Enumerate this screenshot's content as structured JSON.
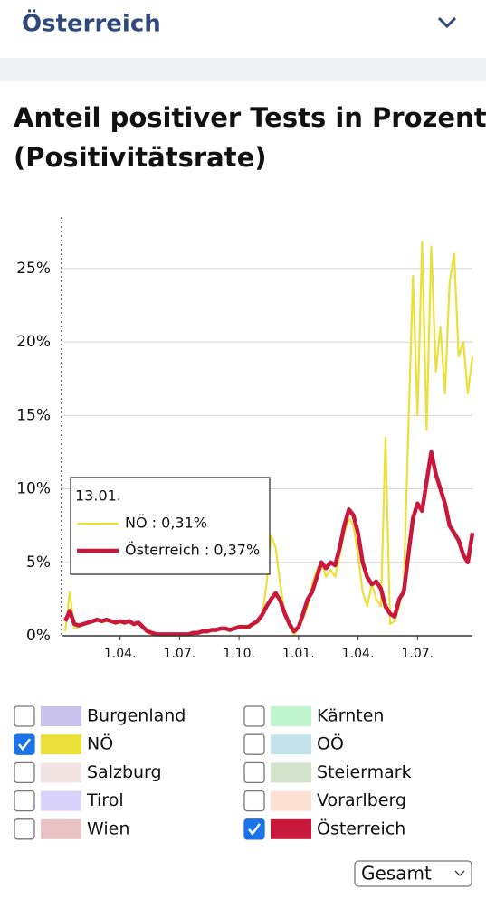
{
  "header": {
    "title": "Österreich"
  },
  "chart_data": {
    "type": "line",
    "title": "Anteil positiver Tests in Prozent (Positivitätsrate)",
    "categories": [
      null,
      null,
      null,
      null,
      null,
      null,
      null,
      null,
      null,
      null,
      null,
      null,
      "1.04.",
      null,
      null,
      null,
      null,
      null,
      null,
      null,
      null,
      null,
      null,
      null,
      null,
      "1.07.",
      null,
      null,
      null,
      null,
      null,
      null,
      null,
      null,
      null,
      null,
      null,
      null,
      "1.10.",
      null,
      null,
      null,
      null,
      null,
      null,
      null,
      null,
      null,
      null,
      null,
      null,
      "1.01.",
      null,
      null,
      null,
      null,
      null,
      null,
      null,
      null,
      null,
      null,
      null,
      null,
      "1.04.",
      null,
      null,
      null,
      null,
      null,
      null,
      null,
      null,
      null,
      null,
      null,
      null,
      "1.07.",
      null,
      null,
      null,
      null,
      null,
      null,
      null,
      null,
      null,
      null,
      null,
      null
    ],
    "series": [
      {
        "name": "NÖ",
        "color": "#ebe03a",
        "values": [
          0.3,
          3.0,
          0.5,
          0.6,
          0.8,
          0.9,
          1.0,
          1.2,
          0.9,
          1.0,
          1.1,
          0.8,
          0.9,
          0.8,
          1.1,
          0.7,
          0.8,
          0.5,
          0.2,
          0.1,
          0.1,
          0.0,
          0.1,
          0.1,
          0.0,
          0.1,
          0.1,
          0.1,
          0.1,
          0.2,
          0.3,
          0.2,
          0.4,
          0.3,
          0.5,
          0.4,
          0.3,
          0.5,
          0.7,
          0.5,
          0.5,
          0.7,
          0.9,
          1.3,
          3.5,
          6.8,
          6.0,
          3.5,
          1.5,
          0.6,
          0.1,
          0.5,
          1.2,
          2.0,
          3.5,
          4.5,
          5.0,
          4.0,
          4.5,
          4.0,
          5.5,
          7.0,
          8.0,
          7.5,
          5.5,
          3.0,
          2.0,
          3.5,
          2.5,
          2.0,
          13.5,
          0.8,
          1.0,
          2.0,
          3.5,
          14.0,
          24.5,
          15.0,
          26.8,
          14.0,
          26.5,
          18.0,
          21.0,
          16.5,
          24.0,
          26.0,
          19.0,
          20.0,
          16.5,
          19.0
        ]
      },
      {
        "name": "Österreich",
        "color": "#c8193c",
        "values": [
          1.0,
          1.7,
          0.8,
          0.7,
          0.8,
          0.9,
          1.0,
          1.1,
          1.0,
          1.1,
          1.0,
          0.9,
          1.0,
          0.9,
          1.0,
          0.8,
          0.9,
          0.6,
          0.3,
          0.2,
          0.1,
          0.1,
          0.1,
          0.1,
          0.1,
          0.1,
          0.1,
          0.1,
          0.2,
          0.2,
          0.3,
          0.3,
          0.4,
          0.4,
          0.5,
          0.5,
          0.4,
          0.5,
          0.6,
          0.6,
          0.6,
          0.8,
          1.0,
          1.4,
          2.0,
          2.5,
          2.9,
          2.4,
          1.5,
          0.8,
          0.3,
          0.6,
          1.5,
          2.5,
          3.0,
          4.0,
          5.0,
          4.6,
          5.0,
          4.8,
          6.0,
          7.5,
          8.6,
          8.2,
          7.0,
          5.0,
          4.0,
          3.5,
          3.7,
          3.2,
          2.0,
          1.5,
          1.3,
          2.5,
          3.0,
          5.5,
          8.0,
          9.0,
          8.5,
          10.5,
          12.5,
          11.0,
          10.0,
          9.0,
          7.5,
          7.0,
          6.5,
          5.5,
          5.0,
          7.0
        ]
      }
    ],
    "ylim": [
      0,
      28.5
    ],
    "yticks": [
      {
        "value": 0,
        "label": "0%"
      },
      {
        "value": 5,
        "label": "5%"
      },
      {
        "value": 10,
        "label": "10%"
      },
      {
        "value": 15,
        "label": "15%"
      },
      {
        "value": 20,
        "label": "20%"
      },
      {
        "value": 25,
        "label": "25%"
      }
    ],
    "grid": true,
    "tooltip": {
      "date": "13.01.",
      "entries": [
        "NÖ : 0,31%",
        "Österreich : 0,37%"
      ]
    }
  },
  "region_filter": [
    {
      "name": "Burgenland",
      "color": "#c9c3ee",
      "checked": false
    },
    {
      "name": "Kärnten",
      "color": "#bff4cf",
      "checked": false
    },
    {
      "name": "NÖ",
      "color": "#ebe03a",
      "checked": true
    },
    {
      "name": "OÖ",
      "color": "#c3e3ea",
      "checked": false
    },
    {
      "name": "Salzburg",
      "color": "#f3e4e4",
      "checked": false
    },
    {
      "name": "Steiermark",
      "color": "#d3e2cb",
      "checked": false
    },
    {
      "name": "Tirol",
      "color": "#d9d3fb",
      "checked": false
    },
    {
      "name": "Vorarlberg",
      "color": "#fde0d4",
      "checked": false
    },
    {
      "name": "Wien",
      "color": "#e9c2c6",
      "checked": false
    },
    {
      "name": "Österreich",
      "color": "#c8193c",
      "checked": true
    }
  ],
  "period_select": {
    "value": "Gesamt"
  }
}
